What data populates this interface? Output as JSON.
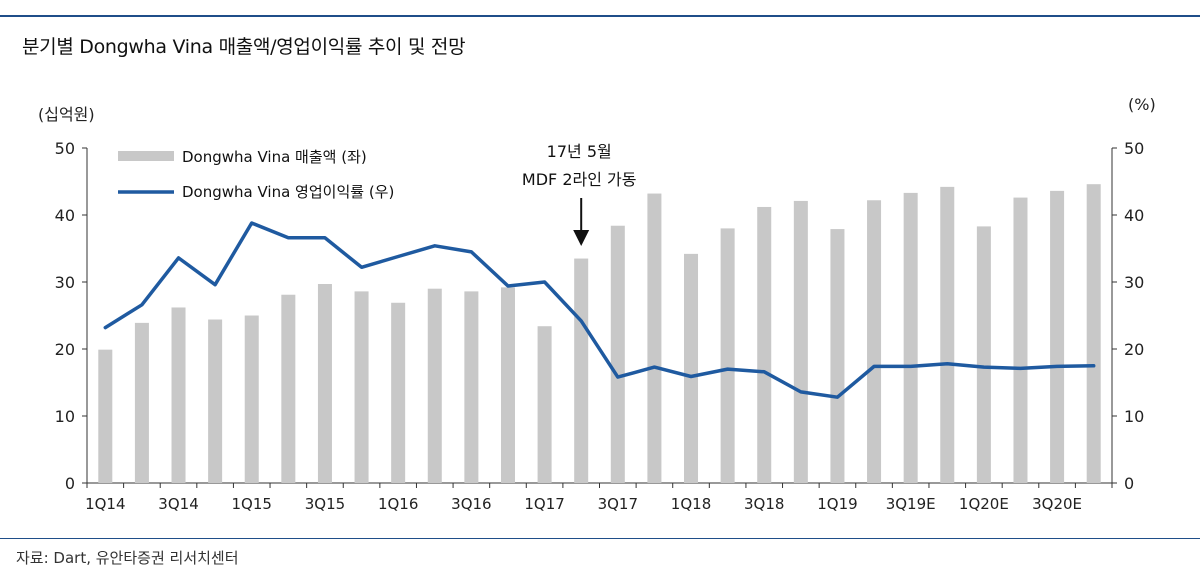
{
  "title": "분기별 Dongwha Vina 매출액/영업이익률 추이 및 전망",
  "source": "자료: Dart, 유안타증권 리서치센터",
  "chart_data": {
    "type": "bar+line",
    "title": "분기별 Dongwha Vina 매출액/영업이익률 추이 및 전망",
    "left_axis_unit": "(십억원)",
    "right_axis_unit": "(%)",
    "ylim_left": [
      0,
      50
    ],
    "ylim_right": [
      0,
      50
    ],
    "yticks": [
      "0",
      "10",
      "20",
      "30",
      "40",
      "50"
    ],
    "categories": [
      "1Q14",
      "2Q14",
      "3Q14",
      "4Q14",
      "1Q15",
      "2Q15",
      "3Q15",
      "4Q15",
      "1Q16",
      "2Q16",
      "3Q16",
      "4Q16",
      "1Q17",
      "2Q17",
      "3Q17",
      "4Q17",
      "1Q18",
      "2Q18",
      "3Q18",
      "4Q18",
      "1Q19",
      "2Q19",
      "3Q19E",
      "4Q19E",
      "1Q20E",
      "2Q20E",
      "3Q20E",
      "4Q20E"
    ],
    "xtick_labels": [
      "1Q14",
      "3Q14",
      "1Q15",
      "3Q15",
      "1Q16",
      "3Q16",
      "1Q17",
      "3Q17",
      "1Q18",
      "3Q18",
      "1Q19",
      "3Q19E",
      "1Q20E",
      "3Q20E"
    ],
    "series": [
      {
        "name": "Dongwha Vina 매출액 (좌)",
        "type": "bar",
        "axis": "left",
        "color": "#c8c8c8",
        "values": [
          19.9,
          23.9,
          26.2,
          24.4,
          25.0,
          28.1,
          29.7,
          28.6,
          26.9,
          29.0,
          28.6,
          29.2,
          23.4,
          33.5,
          38.4,
          43.2,
          34.2,
          38.0,
          41.2,
          42.1,
          37.9,
          42.2,
          43.3,
          44.2,
          38.3,
          42.6,
          43.6,
          44.6
        ]
      },
      {
        "name": "Dongwha Vina 영업이익률 (우)",
        "type": "line",
        "axis": "right",
        "color": "#1f5aa0",
        "values": [
          23.2,
          26.6,
          33.6,
          29.6,
          38.8,
          36.6,
          36.6,
          32.2,
          33.8,
          35.4,
          34.5,
          29.4,
          30.0,
          24.2,
          15.8,
          17.3,
          15.9,
          17.0,
          16.6,
          13.6,
          12.8,
          17.4,
          17.4,
          17.8,
          17.3,
          17.1,
          17.4,
          17.5
        ]
      }
    ],
    "annotation": {
      "line1": "17년 5월",
      "line2": "MDF 2라인 가동",
      "category": "2Q17"
    },
    "legend_position": "top-left"
  }
}
